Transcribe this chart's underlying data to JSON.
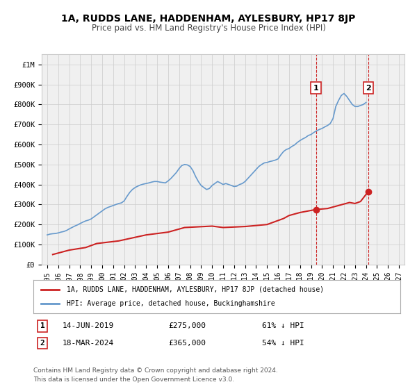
{
  "title": "1A, RUDDS LANE, HADDENHAM, AYLESBURY, HP17 8JP",
  "subtitle": "Price paid vs. HM Land Registry's House Price Index (HPI)",
  "xlabel": "",
  "ylabel": "",
  "background_color": "#ffffff",
  "grid_color": "#cccccc",
  "plot_bg_color": "#f0f0f0",
  "hpi_color": "#6699cc",
  "price_color": "#cc2222",
  "marker1_date": 2019.45,
  "marker1_price": 275000,
  "marker1_label": "14-JUN-2019",
  "marker1_value": "£275,000",
  "marker1_pct": "61% ↓ HPI",
  "marker2_date": 2024.21,
  "marker2_price": 365000,
  "marker2_label": "18-MAR-2024",
  "marker2_value": "£365,000",
  "marker2_pct": "54% ↓ HPI",
  "legend_line1": "1A, RUDDS LANE, HADDENHAM, AYLESBURY, HP17 8JP (detached house)",
  "legend_line2": "HPI: Average price, detached house, Buckinghamshire",
  "footer_line1": "Contains HM Land Registry data © Crown copyright and database right 2024.",
  "footer_line2": "This data is licensed under the Open Government Licence v3.0.",
  "ylim_max": 1050000,
  "xlim_min": 1994.5,
  "xlim_max": 2027.5,
  "yticks": [
    0,
    100000,
    200000,
    300000,
    400000,
    500000,
    600000,
    700000,
    800000,
    900000,
    1000000
  ],
  "ytick_labels": [
    "£0",
    "£100K",
    "£200K",
    "£300K",
    "£400K",
    "£500K",
    "£600K",
    "£700K",
    "£800K",
    "£900K",
    "£1M"
  ],
  "xticks": [
    1995,
    1996,
    1997,
    1998,
    1999,
    2000,
    2001,
    2002,
    2003,
    2004,
    2005,
    2006,
    2007,
    2008,
    2009,
    2010,
    2011,
    2012,
    2013,
    2014,
    2015,
    2016,
    2017,
    2018,
    2019,
    2020,
    2021,
    2022,
    2023,
    2024,
    2025,
    2026,
    2027
  ],
  "hpi_x": [
    1995.0,
    1995.25,
    1995.5,
    1995.75,
    1996.0,
    1996.25,
    1996.5,
    1996.75,
    1997.0,
    1997.25,
    1997.5,
    1997.75,
    1998.0,
    1998.25,
    1998.5,
    1998.75,
    1999.0,
    1999.25,
    1999.5,
    1999.75,
    2000.0,
    2000.25,
    2000.5,
    2000.75,
    2001.0,
    2001.25,
    2001.5,
    2001.75,
    2002.0,
    2002.25,
    2002.5,
    2002.75,
    2003.0,
    2003.25,
    2003.5,
    2003.75,
    2004.0,
    2004.25,
    2004.5,
    2004.75,
    2005.0,
    2005.25,
    2005.5,
    2005.75,
    2006.0,
    2006.25,
    2006.5,
    2006.75,
    2007.0,
    2007.25,
    2007.5,
    2007.75,
    2008.0,
    2008.25,
    2008.5,
    2008.75,
    2009.0,
    2009.25,
    2009.5,
    2009.75,
    2010.0,
    2010.25,
    2010.5,
    2010.75,
    2011.0,
    2011.25,
    2011.5,
    2011.75,
    2012.0,
    2012.25,
    2012.5,
    2012.75,
    2013.0,
    2013.25,
    2013.5,
    2013.75,
    2014.0,
    2014.25,
    2014.5,
    2014.75,
    2015.0,
    2015.25,
    2015.5,
    2015.75,
    2016.0,
    2016.25,
    2016.5,
    2016.75,
    2017.0,
    2017.25,
    2017.5,
    2017.75,
    2018.0,
    2018.25,
    2018.5,
    2018.75,
    2019.0,
    2019.25,
    2019.5,
    2019.75,
    2020.0,
    2020.25,
    2020.5,
    2020.75,
    2021.0,
    2021.25,
    2021.5,
    2021.75,
    2022.0,
    2022.25,
    2022.5,
    2022.75,
    2023.0,
    2023.25,
    2023.5,
    2023.75,
    2024.0
  ],
  "hpi_y": [
    148000,
    152000,
    154000,
    155000,
    158000,
    162000,
    165000,
    170000,
    178000,
    185000,
    192000,
    198000,
    205000,
    212000,
    218000,
    222000,
    228000,
    238000,
    248000,
    258000,
    268000,
    278000,
    285000,
    290000,
    295000,
    300000,
    305000,
    308000,
    318000,
    340000,
    360000,
    375000,
    385000,
    392000,
    398000,
    402000,
    405000,
    408000,
    412000,
    415000,
    415000,
    412000,
    410000,
    408000,
    418000,
    430000,
    445000,
    460000,
    480000,
    495000,
    500000,
    498000,
    490000,
    470000,
    440000,
    415000,
    395000,
    385000,
    375000,
    380000,
    395000,
    405000,
    415000,
    408000,
    400000,
    405000,
    400000,
    395000,
    390000,
    392000,
    400000,
    405000,
    415000,
    430000,
    445000,
    460000,
    475000,
    490000,
    500000,
    508000,
    510000,
    515000,
    518000,
    522000,
    528000,
    548000,
    565000,
    575000,
    580000,
    590000,
    598000,
    610000,
    620000,
    628000,
    635000,
    645000,
    650000,
    660000,
    668000,
    675000,
    680000,
    688000,
    695000,
    705000,
    730000,
    790000,
    820000,
    845000,
    855000,
    840000,
    820000,
    800000,
    790000,
    790000,
    795000,
    800000,
    810000
  ],
  "price_x": [
    1995.5,
    1997.0,
    1998.5,
    1999.5,
    2001.5,
    2002.5,
    2004.0,
    2006.0,
    2007.5,
    2010.0,
    2011.0,
    2013.0,
    2014.0,
    2015.0,
    2016.5,
    2017.0,
    2018.0,
    2019.45,
    2020.5,
    2021.5,
    2022.5,
    2023.0,
    2023.5,
    2024.21
  ],
  "price_y": [
    50000,
    72000,
    85000,
    105000,
    118000,
    130000,
    148000,
    162000,
    185000,
    192000,
    185000,
    190000,
    195000,
    200000,
    230000,
    245000,
    260000,
    275000,
    280000,
    295000,
    310000,
    305000,
    315000,
    365000
  ]
}
